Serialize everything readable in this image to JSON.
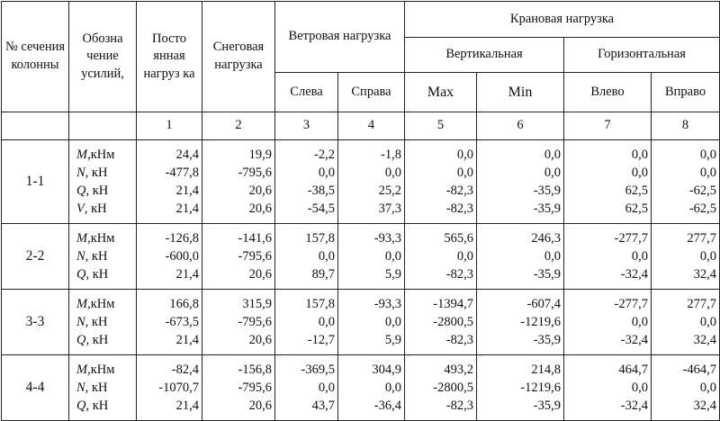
{
  "header": {
    "section_no": "№ сечения колонны",
    "forces_label": "Обозна чение усилий,",
    "permanent": "Посто янная нагруз ка",
    "snow": "Снеговая нагрузка",
    "wind": "Ветровая нагрузка",
    "wind_left": "Слева",
    "wind_right": "Справа",
    "crane": "Крановая нагрузка",
    "vertical": "Вертикальная",
    "horizontal": "Горизонтальная",
    "max": "Max",
    "min": "Min",
    "left": "Влево",
    "right": "Вправо",
    "col_numbers": [
      "1",
      "2",
      "3",
      "4",
      "5",
      "6",
      "7",
      "8"
    ]
  },
  "rows": [
    {
      "section": "1-1",
      "forces": [
        {
          "sym": "M",
          "unit": ",кНм"
        },
        {
          "sym": "N",
          "unit": ", кН"
        },
        {
          "sym": "Q",
          "unit": ", кН"
        },
        {
          "sym": "V",
          "unit": ", кН"
        }
      ],
      "columns": [
        [
          "24,4",
          "-477,8",
          "21,4",
          "21,4"
        ],
        [
          "19,9",
          "-795,6",
          "20,6",
          "20,6"
        ],
        [
          "-2,2",
          "0,0",
          "-38,5",
          "-54,5"
        ],
        [
          "-1,8",
          "0,0",
          "25,2",
          "37,3"
        ],
        [
          "0,0",
          "0,0",
          "-82,3",
          "-82,3"
        ],
        [
          "0,0",
          "0,0",
          "-35,9",
          "-35,9"
        ],
        [
          "0,0",
          "0,0",
          "62,5",
          "62,5"
        ],
        [
          "0,0",
          "0,0",
          "-62,5",
          "-62,5"
        ]
      ]
    },
    {
      "section": "2-2",
      "forces": [
        {
          "sym": "M",
          "unit": ",кНм"
        },
        {
          "sym": "N",
          "unit": ", кН"
        },
        {
          "sym": "Q",
          "unit": ", кН"
        }
      ],
      "columns": [
        [
          "-126,8",
          "-600,0",
          "21,4"
        ],
        [
          "-141,6",
          "-795,6",
          "20,6"
        ],
        [
          "157,8",
          "0,0",
          "89,7"
        ],
        [
          "-93,3",
          "0,0",
          "5,9"
        ],
        [
          "565,6",
          "0,0",
          "-82,3"
        ],
        [
          "246,3",
          "0,0",
          "-35,9"
        ],
        [
          "-277,7",
          "0,0",
          "-32,4"
        ],
        [
          "277,7",
          "0,0",
          "32,4"
        ]
      ]
    },
    {
      "section": "3-3",
      "forces": [
        {
          "sym": "M",
          "unit": ",кНм"
        },
        {
          "sym": "N",
          "unit": ", кН"
        },
        {
          "sym": "Q",
          "unit": ", кН"
        }
      ],
      "columns": [
        [
          "166,8",
          "-673,5",
          "21,4"
        ],
        [
          "315,9",
          "-795,6",
          "20,6"
        ],
        [
          "157,8",
          "0,0",
          "-12,7"
        ],
        [
          "-93,3",
          "0,0",
          "5,9"
        ],
        [
          "-1394,7",
          "-2800,5",
          "-82,3"
        ],
        [
          "-607,4",
          "-1219,6",
          "-35,9"
        ],
        [
          "-277,7",
          "0,0",
          "-32,4"
        ],
        [
          "277,7",
          "0,0",
          "32,4"
        ]
      ]
    },
    {
      "section": "4-4",
      "forces": [
        {
          "sym": "M",
          "unit": ",кНм"
        },
        {
          "sym": "N",
          "unit": ", кН"
        },
        {
          "sym": "Q",
          "unit": ", кН"
        }
      ],
      "columns": [
        [
          "-82,4",
          "-1070,7",
          "21,4"
        ],
        [
          "-156,8",
          "-795,6",
          "20,6"
        ],
        [
          "-369,5",
          "0,0",
          "43,7"
        ],
        [
          "304,9",
          "0,0",
          "-36,4"
        ],
        [
          "493,2",
          "-2800,5",
          "-82,3"
        ],
        [
          "214,8",
          "-1219,6",
          "-35,9"
        ],
        [
          "464,7",
          "0,0",
          "-32,4"
        ],
        [
          "-464,7",
          "0,0",
          "32,4"
        ]
      ]
    }
  ]
}
